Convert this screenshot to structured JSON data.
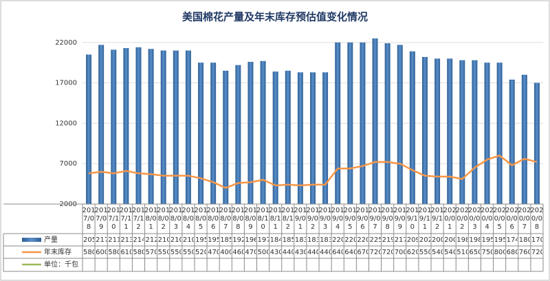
{
  "chart_data": {
    "type": "bar_line",
    "title": "美国棉花产量及年末库存预估值变化情况",
    "categories": [
      "2017/08",
      "2017/09",
      "2017/10",
      "2017/11",
      "2017/12",
      "2018/01",
      "2018/02",
      "2018/03",
      "2018/04",
      "2018/05",
      "2018/06",
      "2018/07",
      "2018/08",
      "2018/09",
      "2018/10",
      "2018/11",
      "2018/12",
      "2019/01",
      "2019/02",
      "2019/03",
      "2019/04",
      "2019/05",
      "2019/06",
      "2019/07",
      "2019/08",
      "2019/09",
      "2019/10",
      "2019/11",
      "2019/12",
      "2020/01",
      "2020/02",
      "2020/03",
      "2020/04",
      "2020/05",
      "2020/06",
      "2020/07",
      "2020/08"
    ],
    "series": [
      {
        "name": "产量",
        "color": "#4f81bd",
        "values": [
          20500,
          21700,
          21100,
          21300,
          21400,
          21200,
          21000,
          21000,
          21000,
          19500,
          19500,
          18500,
          19200,
          19600,
          19700,
          18400,
          18500,
          18300,
          18300,
          18300,
          22000,
          22000,
          22000,
          22500,
          21900,
          21700,
          20900,
          20200,
          20000,
          20000,
          19800,
          19800,
          19500,
          19500,
          17400,
          18000,
          17000
        ]
      },
      {
        "name": "年末库存",
        "color": "#f79646",
        "values": [
          5800,
          6000,
          5800,
          6100,
          5800,
          5700,
          5500,
          5500,
          5500,
          5200,
          4700,
          4000,
          4600,
          4700,
          5000,
          4300,
          4400,
          4300,
          4400,
          4400,
          6400,
          6400,
          6700,
          7200,
          7200,
          7000,
          6200,
          5500,
          5400,
          5400,
          5100,
          6500,
          7500,
          8000,
          6800,
          7600,
          7200
        ]
      }
    ],
    "unit": "单位：千包",
    "ylim": [
      2000,
      23000
    ],
    "yticks": [
      2000,
      7000,
      12000,
      17000,
      22000
    ],
    "grid": true
  }
}
